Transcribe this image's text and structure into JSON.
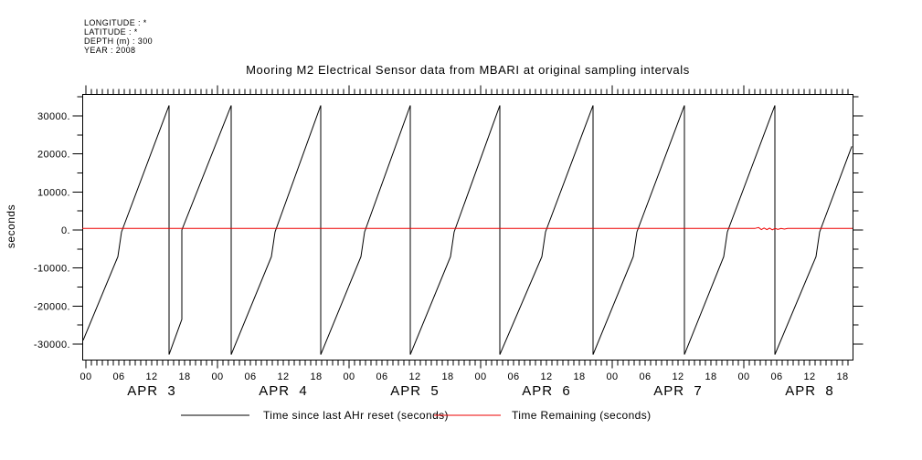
{
  "header": {
    "longitude": "LONGITUDE : *",
    "latitude": "LATITUDE : *",
    "depth": "DEPTH (m) : 300",
    "year": "YEAR : 2008"
  },
  "colors": {
    "background": "#ffffff",
    "axis": "#000000",
    "series_black": "#000000",
    "series_red": "#ee0000"
  },
  "chart_data": {
    "type": "line",
    "title": "Mooring M2 Electrical Sensor data from MBARI at original sampling intervals",
    "ylabel": "seconds",
    "grid": false,
    "legend_position": "bottom",
    "x_axis": {
      "unit": "hours from APR 3 00:00",
      "range_h": [
        -0.67,
        139.83
      ],
      "minor_tick_step_h": 1,
      "label_step_h": 6,
      "day_tick_step_h": 24,
      "hour_labels": [
        "00",
        "06",
        "12",
        "18",
        "00",
        "06",
        "12",
        "18",
        "00",
        "06",
        "12",
        "18",
        "00",
        "06",
        "12",
        "18",
        "00",
        "06",
        "12",
        "18",
        "00",
        "06",
        "12",
        "18"
      ],
      "date_labels": [
        "APR  3",
        "APR  4",
        "APR  5",
        "APR  6",
        "APR  7",
        "APR  8"
      ]
    },
    "y_axis": {
      "range": [
        -34080,
        35760
      ],
      "minor_step": 5000,
      "major_step": 10000,
      "tick_values": [
        30000,
        20000,
        10000,
        0,
        -10000,
        -20000,
        -30000
      ],
      "tick_labels": [
        "30000.",
        "20000.",
        "10000.",
        "0.",
        "-10000.",
        "-20000.",
        "-30000."
      ]
    },
    "series": [
      {
        "name": "Time since last AHr reset (seconds)",
        "color": "#000000",
        "points": [
          [
            -0.5,
            -29000
          ],
          [
            5.83,
            -7000
          ],
          [
            6.5,
            -500
          ],
          [
            15.17,
            32767
          ],
          [
            15.17,
            -32768
          ],
          [
            17.5,
            -23500
          ],
          [
            17.5,
            0
          ],
          [
            26.5,
            32767
          ],
          [
            26.5,
            -32768
          ],
          [
            33.83,
            -7000
          ],
          [
            34.5,
            -500
          ],
          [
            42.83,
            32767
          ],
          [
            42.83,
            -32768
          ],
          [
            50.17,
            -7000
          ],
          [
            50.83,
            -500
          ],
          [
            59.17,
            32767
          ],
          [
            59.17,
            -32768
          ],
          [
            66.5,
            -7000
          ],
          [
            67.17,
            -500
          ],
          [
            75.5,
            32767
          ],
          [
            75.5,
            -32768
          ],
          [
            83.17,
            -7000
          ],
          [
            83.83,
            -500
          ],
          [
            92.5,
            32767
          ],
          [
            92.5,
            -32768
          ],
          [
            99.83,
            -7000
          ],
          [
            100.5,
            -500
          ],
          [
            109.17,
            32767
          ],
          [
            109.17,
            -32768
          ],
          [
            116.33,
            -7000
          ],
          [
            117.0,
            -500
          ],
          [
            125.67,
            32767
          ],
          [
            125.67,
            -32768
          ],
          [
            133.17,
            -7000
          ],
          [
            133.83,
            -500
          ],
          [
            139.7,
            22000
          ]
        ]
      },
      {
        "name": "Time Remaining (seconds)",
        "color": "#ee0000",
        "points": [
          [
            -0.67,
            400
          ],
          [
            122.0,
            400
          ],
          [
            122.7,
            650
          ],
          [
            123.2,
            120
          ],
          [
            123.7,
            520
          ],
          [
            124.2,
            90
          ],
          [
            124.7,
            470
          ],
          [
            125.2,
            60
          ],
          [
            125.7,
            430
          ],
          [
            126.2,
            140
          ],
          [
            126.8,
            420
          ],
          [
            127.4,
            230
          ],
          [
            128.0,
            400
          ],
          [
            139.83,
            400
          ]
        ]
      }
    ]
  }
}
